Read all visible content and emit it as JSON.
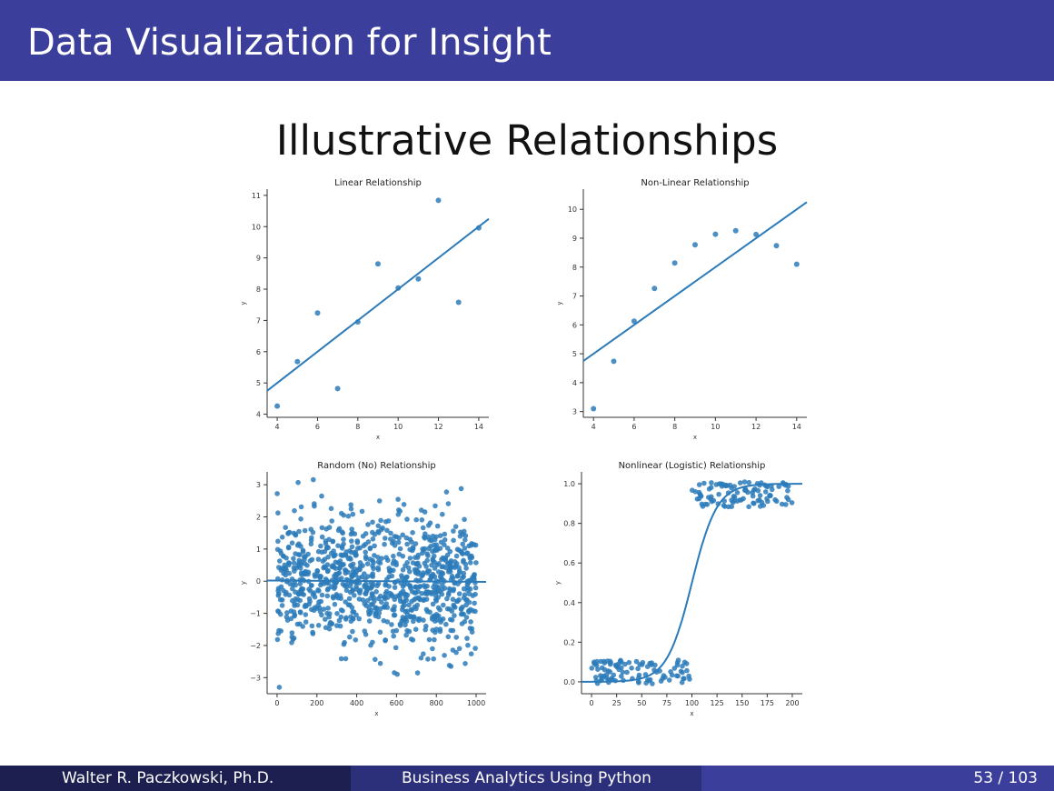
{
  "header": {
    "title": "Data Visualization for Insight"
  },
  "slide": {
    "title": "Illustrative Relationships"
  },
  "footer": {
    "author": "Walter R. Paczkowski, Ph.D.",
    "course": "Business Analytics Using Python",
    "page": "53 / 103"
  },
  "colors": {
    "header": "#3b3f9b",
    "point": "#2b7bba",
    "line": "#2b7bba"
  },
  "chart_data": [
    {
      "type": "scatter",
      "title": "Linear Relationship",
      "xlabel": "x",
      "ylabel": "y",
      "xlim": [
        3.5,
        14.5
      ],
      "ylim": [
        3.9,
        11.2
      ],
      "xticks": [
        4,
        6,
        8,
        10,
        12,
        14
      ],
      "yticks": [
        4,
        5,
        6,
        7,
        8,
        9,
        10,
        11
      ],
      "x": [
        4,
        5,
        6,
        7,
        8,
        9,
        10,
        11,
        12,
        13,
        14
      ],
      "y": [
        4.26,
        5.68,
        7.24,
        4.82,
        6.95,
        8.81,
        8.04,
        8.33,
        10.84,
        7.58,
        9.96
      ],
      "fit": {
        "x": [
          3.5,
          14.5
        ],
        "y": [
          4.75,
          10.25
        ]
      }
    },
    {
      "type": "scatter",
      "title": "Non-Linear Relationship",
      "xlabel": "x",
      "ylabel": "y",
      "xlim": [
        3.5,
        14.5
      ],
      "ylim": [
        2.8,
        10.7
      ],
      "xticks": [
        4,
        6,
        8,
        10,
        12,
        14
      ],
      "yticks": [
        3,
        4,
        5,
        6,
        7,
        8,
        9,
        10
      ],
      "x": [
        4,
        5,
        6,
        7,
        8,
        9,
        10,
        11,
        12,
        13,
        14
      ],
      "y": [
        3.1,
        4.74,
        6.13,
        7.26,
        8.14,
        8.77,
        9.14,
        9.26,
        9.13,
        8.74,
        8.1
      ],
      "fit": {
        "x": [
          3.5,
          14.5
        ],
        "y": [
          4.75,
          10.25
        ]
      }
    },
    {
      "type": "scatter",
      "title": "Random (No) Relationship",
      "xlabel": "x",
      "ylabel": "y",
      "xlim": [
        -50,
        1050
      ],
      "ylim": [
        -3.5,
        3.4
      ],
      "xticks": [
        0,
        200,
        400,
        600,
        800,
        1000
      ],
      "yticks": [
        3,
        2,
        1,
        0,
        -1,
        -2,
        -3
      ],
      "ytick_labels": [
        "3",
        "2",
        "1",
        "0",
        "−1",
        "−2",
        "−3"
      ],
      "n_points": 1000,
      "x_range": [
        0,
        1000
      ],
      "y_mean": 0,
      "y_sd": 1,
      "fit": {
        "x": [
          -50,
          1050
        ],
        "y": [
          0.02,
          -0.02
        ]
      }
    },
    {
      "type": "scatter",
      "title": "Nonlinear (Logistic) Relationship",
      "xlabel": "x",
      "ylabel": "y",
      "xlim": [
        -10,
        210
      ],
      "ylim": [
        -0.06,
        1.06
      ],
      "xticks": [
        0,
        25,
        50,
        75,
        100,
        125,
        150,
        175,
        200
      ],
      "yticks": [
        0.0,
        0.2,
        0.4,
        0.6,
        0.8,
        1.0
      ],
      "ytick_labels": [
        "0.0",
        "0.2",
        "0.4",
        "0.6",
        "0.8",
        "1.0"
      ],
      "clusters": [
        {
          "x_range": [
            0,
            100
          ],
          "y_range": [
            -0.01,
            0.11
          ],
          "n": 100
        },
        {
          "x_range": [
            100,
            200
          ],
          "y_range": [
            0.88,
            1.01
          ],
          "n": 100
        }
      ],
      "fit": {
        "type": "logistic",
        "L": 1.0,
        "k": 0.08,
        "x0": 100,
        "x_range": [
          -10,
          210
        ]
      }
    }
  ]
}
